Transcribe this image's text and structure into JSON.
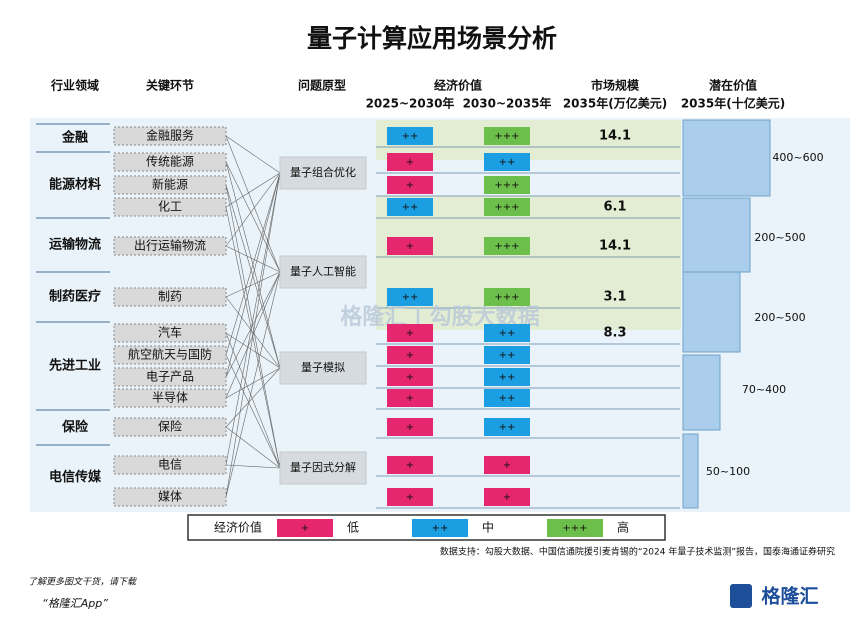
{
  "title": "量子计算应用场景分析",
  "headers": {
    "industry": "行业领域",
    "segment": "关键环节",
    "problem": "问题原型",
    "econ": "经济价值",
    "econ_a": "2025~2030年",
    "econ_b": "2030~2035年",
    "market": "市场规模",
    "market_sub": "2035年(万亿美元)",
    "potential": "潜在价值",
    "potential_sub": "2035年(十亿美元)"
  },
  "industries": [
    {
      "name": "金融",
      "market": "14.1",
      "segments": [
        {
          "name": "金融服务",
          "a": "++",
          "b": "+++"
        }
      ]
    },
    {
      "name": "能源材料",
      "market": "6.1",
      "segments": [
        {
          "name": "传统能源",
          "a": "+",
          "b": "++"
        },
        {
          "name": "新能源",
          "a": "+",
          "b": "+++"
        },
        {
          "name": "化工",
          "a": "++",
          "b": "+++"
        }
      ]
    },
    {
      "name": "运输物流",
      "market": "14.1",
      "segments": [
        {
          "name": "出行运输物流",
          "a": "+",
          "b": "+++"
        }
      ]
    },
    {
      "name": "制药医疗",
      "market": "3.1",
      "segments": [
        {
          "name": "制药",
          "a": "++",
          "b": "+++"
        }
      ]
    },
    {
      "name": "先进工业",
      "market": "8.3",
      "segments": [
        {
          "name": "汽车",
          "a": "+",
          "b": "++"
        },
        {
          "name": "航空航天与国防",
          "a": "+",
          "b": "++"
        },
        {
          "name": "电子产品",
          "a": "+",
          "b": "++"
        },
        {
          "name": "半导体",
          "a": "+",
          "b": "++"
        }
      ]
    },
    {
      "name": "保险",
      "segments": [
        {
          "name": "保险",
          "a": "+",
          "b": "++"
        }
      ]
    },
    {
      "name": "电信传媒",
      "segments": [
        {
          "name": "电信",
          "a": "+",
          "b": "+"
        },
        {
          "name": "媒体",
          "a": "+",
          "b": "+"
        }
      ]
    }
  ],
  "problems": [
    "量子组合优化",
    "量子人工智能",
    "量子模拟",
    "量子因式分解"
  ],
  "potentials": [
    "400~600",
    "200~500",
    "200~500",
    "70~400",
    "50~100"
  ],
  "legend": {
    "title": "经济价值",
    "items": [
      {
        "symbol": "+",
        "label": "低",
        "color": "#e6266f"
      },
      {
        "symbol": "++",
        "label": "中",
        "color": "#1c9fe2"
      },
      {
        "symbol": "+++",
        "label": "高",
        "color": "#6cbf4a"
      }
    ]
  },
  "watermark": "格隆汇 | 勾股大数据",
  "source": "数据支持：勾股大数据、中国信通院援引麦肯锡的“2024 年量子技术监测”报告，国泰海通证券研究",
  "footer": {
    "line1": "了解更多图文干货，请下载",
    "line2": "“格隆汇App”",
    "logo": "格隆汇"
  }
}
